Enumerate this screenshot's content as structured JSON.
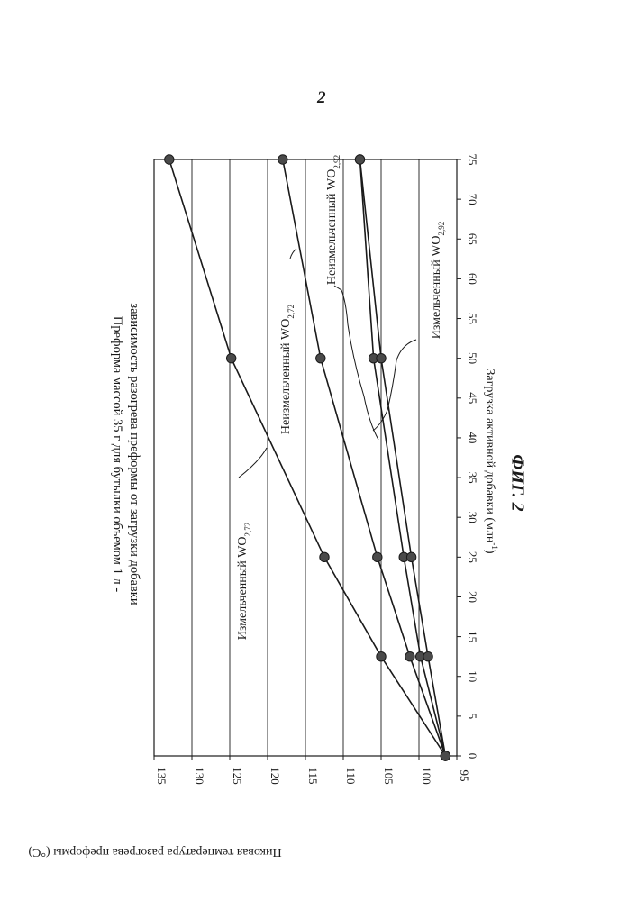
{
  "page": {
    "number": "2",
    "figure_label": "ФИГ. 2"
  },
  "chart_data": {
    "type": "line",
    "title_line1": "Преформа массой 35 г для бутылки объемом 1 л -",
    "title_line2": "зависимость разогрева преформы от загрузки добавки",
    "xlabel": "Загрузка активной добавки (млн",
    "xlabel_sup": "-1",
    "xlabel_tail": ")",
    "ylabel": "Пиковая температура разогрева преформы (°С)",
    "xlim": [
      0,
      75
    ],
    "ylim": [
      95,
      135
    ],
    "xticks": [
      0,
      5,
      10,
      15,
      20,
      25,
      30,
      35,
      40,
      45,
      50,
      55,
      60,
      65,
      70,
      75
    ],
    "yticks": [
      95,
      100,
      105,
      110,
      115,
      120,
      125,
      130,
      135
    ],
    "grid": true,
    "orientation": "rotated 90° clockwise on page",
    "series": [
      {
        "name": "Измельченный WO2,72",
        "label_main": "Измельченный WO",
        "label_sub": "2,72",
        "x": [
          0,
          12.5,
          25,
          50,
          75
        ],
        "y": [
          96.5,
          105,
          112.5,
          124.8,
          133
        ]
      },
      {
        "name": "Неизмельченный WO2,72",
        "label_main": "Неизмельченный WO",
        "label_sub": "2,72",
        "x": [
          0,
          12.5,
          25,
          50,
          75
        ],
        "y": [
          96.5,
          101.2,
          105.5,
          113,
          118
        ]
      },
      {
        "name": "Неизмельченный WO2,92",
        "label_main": "Неизмельченный WO",
        "label_sub": "2,92",
        "x": [
          0,
          12.5,
          25,
          50,
          75
        ],
        "y": [
          96.5,
          99.8,
          102,
          106,
          107.8
        ]
      },
      {
        "name": "Измельченный WO2,92",
        "label_main": "Измельченный WO",
        "label_sub": "2,92",
        "x": [
          0,
          12.5,
          25,
          50,
          75
        ],
        "y": [
          96.5,
          98.8,
          101,
          105,
          107.8
        ]
      }
    ]
  }
}
